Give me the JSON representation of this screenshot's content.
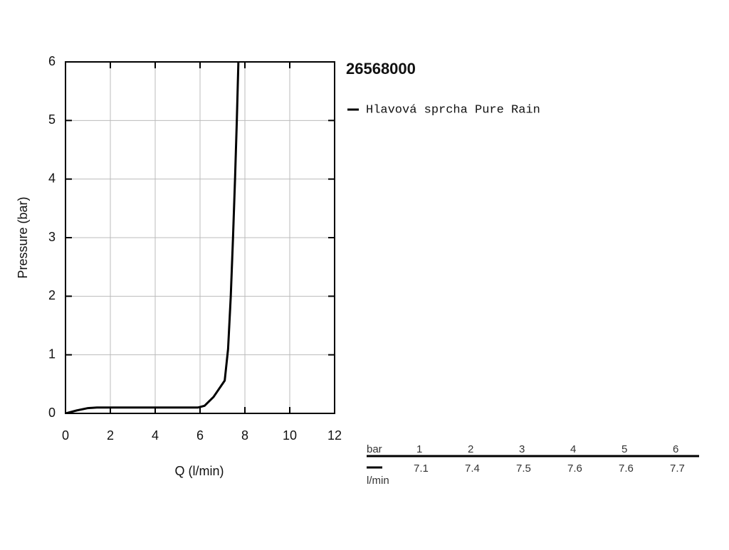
{
  "chart_data": {
    "type": "line",
    "title": "26568000",
    "xlabel": "Q (l/min)",
    "ylabel": "Pressure (bar)",
    "xlim": [
      0,
      12
    ],
    "xticks": [
      0,
      2,
      4,
      6,
      8,
      10,
      12
    ],
    "ylim": [
      0,
      6
    ],
    "yticks": [
      0,
      1,
      2,
      3,
      4,
      5,
      6
    ],
    "grid": true,
    "series": [
      {
        "name": "Hlavová sprcha Pure Rain",
        "color": "#000000",
        "x": [
          0,
          0.5,
          1,
          1.4,
          2,
          4,
          5.9,
          6.2,
          6.6,
          7.1,
          7.25,
          7.37,
          7.47,
          7.56,
          7.64,
          7.71
        ],
        "values": [
          0,
          0.05,
          0.09,
          0.1,
          0.1,
          0.1,
          0.1,
          0.13,
          0.28,
          0.56,
          1.1,
          2.0,
          3.0,
          4.0,
          5.0,
          6.0
        ]
      }
    ]
  },
  "table": {
    "header": "bar",
    "unit": "l/min",
    "pressures": [
      1,
      2,
      3,
      4,
      5,
      6
    ],
    "flows": [
      7.1,
      7.4,
      7.5,
      7.6,
      7.6,
      7.7
    ]
  }
}
